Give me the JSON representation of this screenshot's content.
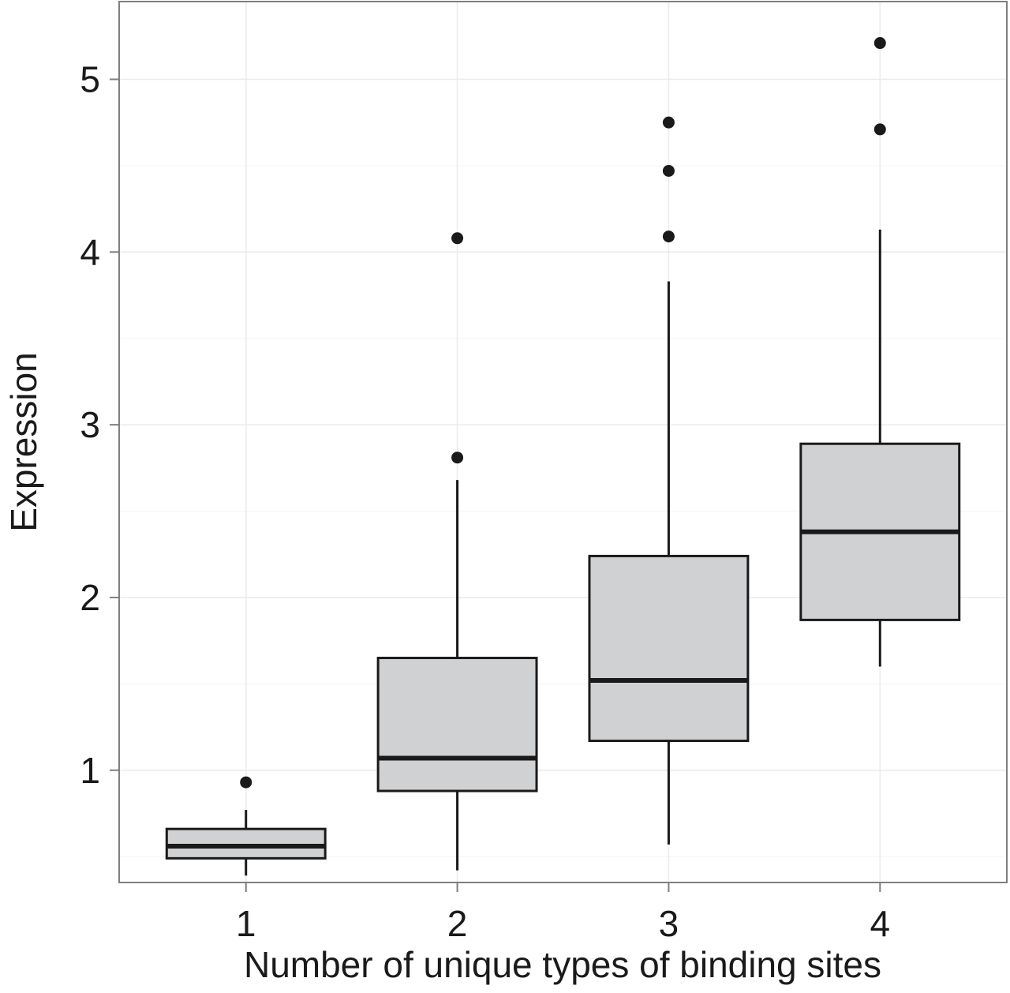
{
  "chart_data": {
    "type": "box",
    "title": "",
    "xlabel": "Number of unique types of binding sites",
    "ylabel": "Expression",
    "categories": [
      "1",
      "2",
      "3",
      "4"
    ],
    "ylim": [
      0.35,
      5.45
    ],
    "yticks": [
      "1",
      "2",
      "3",
      "4",
      "5"
    ],
    "grid": true,
    "legend": "none",
    "box_fill": "#d0d1d3",
    "line_color": "#1a1a1a",
    "boxes": [
      {
        "category": "1",
        "whisker_low": 0.39,
        "q1": 0.49,
        "median": 0.56,
        "q3": 0.66,
        "whisker_high": 0.77,
        "outliers": [
          0.93
        ]
      },
      {
        "category": "2",
        "whisker_low": 0.42,
        "q1": 0.88,
        "median": 1.07,
        "q3": 1.65,
        "whisker_high": 2.68,
        "outliers": [
          2.81,
          4.08
        ]
      },
      {
        "category": "3",
        "whisker_low": 0.57,
        "q1": 1.17,
        "median": 1.52,
        "q3": 2.24,
        "whisker_high": 3.83,
        "outliers": [
          4.09,
          4.47,
          4.75
        ]
      },
      {
        "category": "4",
        "whisker_low": 1.6,
        "q1": 1.87,
        "median": 2.38,
        "q3": 2.89,
        "whisker_high": 4.13,
        "outliers": [
          4.71,
          5.21
        ]
      }
    ]
  }
}
